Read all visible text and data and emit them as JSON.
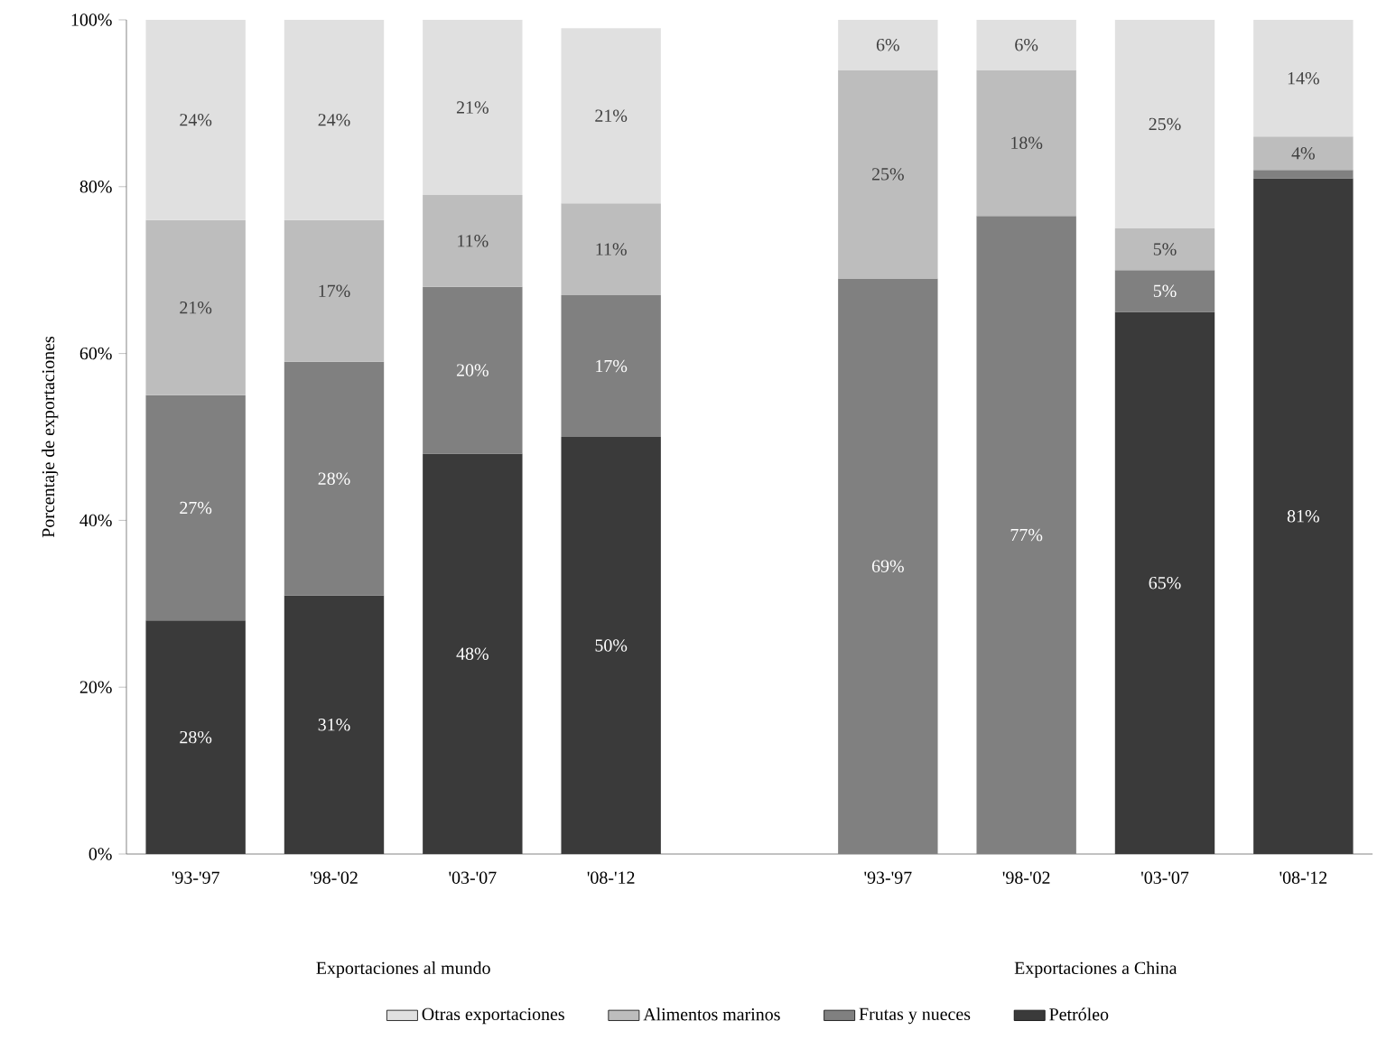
{
  "chart_data": {
    "type": "bar",
    "stacked": true,
    "ylabel": "Porcentaje de exportaciones",
    "categories": [
      "'93-'97",
      "'98-'02",
      "'03-'07",
      "'08-'12",
      null,
      "'93-'97",
      "'98-'02",
      "'03-'07",
      "'08-'12"
    ],
    "ylim": [
      0,
      100
    ],
    "yticks": [
      {
        "value": 0,
        "label": "0%"
      },
      {
        "value": 20,
        "label": "20%"
      },
      {
        "value": 40,
        "label": "40%"
      },
      {
        "value": 60,
        "label": "60%"
      },
      {
        "value": 80,
        "label": "80%"
      },
      {
        "value": 100,
        "label": "100%"
      }
    ],
    "series": [
      {
        "name": "Petróleo",
        "color": "#3a3a3a",
        "values": [
          28,
          31,
          48,
          50,
          null,
          null,
          null,
          65,
          81
        ],
        "value_labels": [
          "28%",
          "31%",
          "48%",
          "50%",
          null,
          null,
          null,
          "65%",
          "81%"
        ]
      },
      {
        "name": "Frutas y nueces",
        "color": "#808080",
        "values": [
          27,
          28,
          20,
          17,
          null,
          69,
          76.5,
          5,
          1
        ],
        "value_labels": [
          "27%",
          "28%",
          "20%",
          "17%",
          null,
          "69%",
          "77%",
          "5%",
          null
        ]
      },
      {
        "name": "Alimentos marinos",
        "color": "#bdbdbd",
        "values": [
          21,
          17,
          11,
          11,
          null,
          25,
          17.5,
          5,
          4
        ],
        "value_labels": [
          "21%",
          "17%",
          "11%",
          "11%",
          null,
          "25%",
          "18%",
          "5%",
          "4%"
        ]
      },
      {
        "name": "Otras exportaciones",
        "color": "#e0e0e0",
        "values": [
          24,
          24,
          21,
          21,
          null,
          6,
          6,
          25,
          14
        ],
        "value_labels": [
          "24%",
          "24%",
          "21%",
          "21%",
          null,
          "6%",
          "6%",
          "25%",
          "14%"
        ]
      }
    ],
    "annotations": [
      "Exportaciones al mundo",
      "Exportaciones a China"
    ],
    "legend": "bottom"
  }
}
